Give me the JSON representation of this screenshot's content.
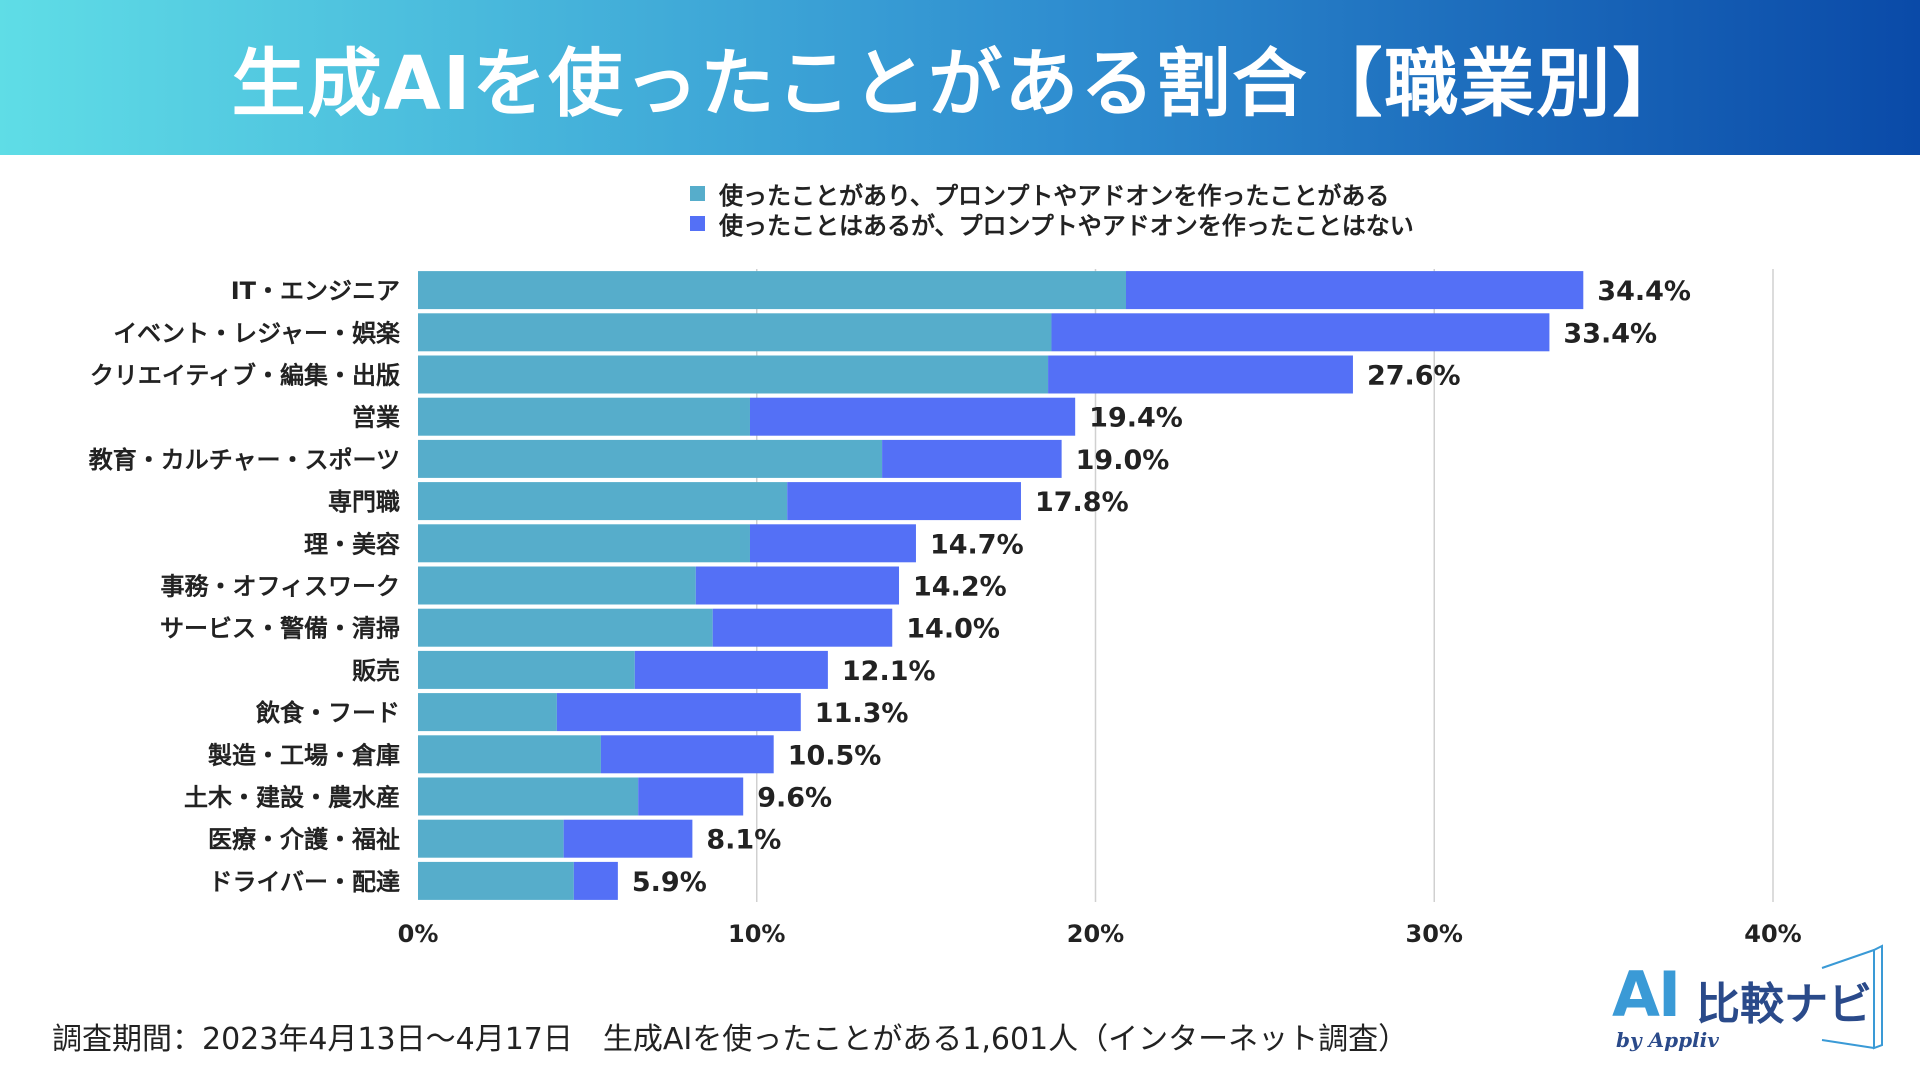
{
  "title": "生成AIを使ったことがある割合【職業別】",
  "footnote": "調査期間：2023年4月13日～4月17日　生成AIを使ったことがある1,601人（インターネット調査）",
  "logo": {
    "mark": "AI",
    "name": "比較ナビ",
    "by": "by Appliv"
  },
  "colors": {
    "series1": "#56adcb",
    "series2": "#5470f6",
    "grid": "#d0d0d0",
    "text": "#222222"
  },
  "chart_data": {
    "type": "bar",
    "orientation": "horizontal",
    "stacked": true,
    "title": "生成AIを使ったことがある割合【職業別】",
    "xlim": [
      0,
      40
    ],
    "xticks": [
      "0%",
      "10%",
      "20%",
      "30%",
      "40%"
    ],
    "xtick_values": [
      0,
      10,
      20,
      30,
      40
    ],
    "grid": true,
    "legend_position": "top-center",
    "categories": [
      "IT・エンジニア",
      "イベント・レジャー・娯楽",
      "クリエイティブ・編集・出版",
      "営業",
      "教育・カルチャー・スポーツ",
      "専門職",
      "理・美容",
      "事務・オフィスワーク",
      "サービス・警備・清掃",
      "販売",
      "飲食・フード",
      "製造・工場・倉庫",
      "土木・建設・農水産",
      "医療・介護・福祉",
      "ドライバー・配達"
    ],
    "series": [
      {
        "name": "使ったことがあり、プロンプトやアドオンを作ったことがある",
        "values": [
          20.9,
          18.7,
          18.6,
          9.8,
          13.7,
          10.9,
          9.8,
          8.2,
          8.7,
          6.4,
          4.1,
          5.4,
          6.5,
          4.3,
          4.6
        ]
      },
      {
        "name": "使ったことはあるが、プロンプトやアドオンを作ったことはない",
        "values": [
          13.5,
          14.7,
          9.0,
          9.6,
          5.3,
          6.9,
          4.9,
          6.0,
          5.3,
          5.7,
          7.2,
          5.1,
          3.1,
          3.8,
          1.3
        ]
      }
    ],
    "totals": [
      "34.4%",
      "33.4%",
      "27.6%",
      "19.4%",
      "19.0%",
      "17.8%",
      "14.7%",
      "14.2%",
      "14.0%",
      "12.1%",
      "11.3%",
      "10.5%",
      "9.6%",
      "8.1%",
      "5.9%"
    ]
  }
}
